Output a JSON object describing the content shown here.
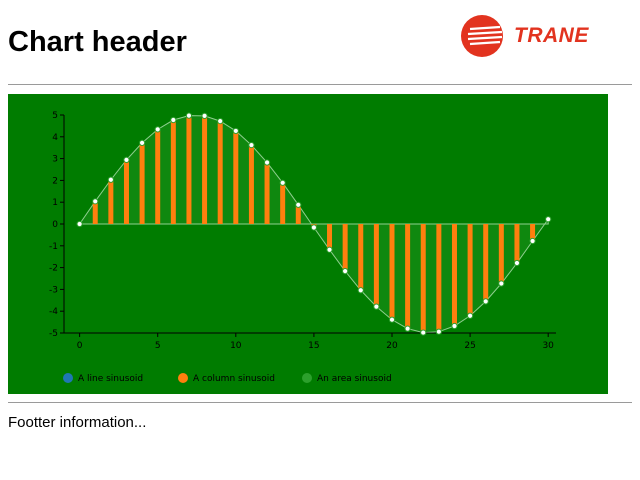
{
  "header": {
    "title": "Chart header",
    "logo_text": "TRANE"
  },
  "footer": {
    "text": "Footter information..."
  },
  "colors": {
    "background": "#007c00",
    "line": "#1f77b4",
    "column": "#ff7f0e",
    "area": "#2ca02c",
    "brand": "#e2331f"
  },
  "chart_data": {
    "type": "bar",
    "title": "",
    "xlabel": "",
    "ylabel": "",
    "xlim": [
      -1,
      30.5
    ],
    "ylim": [
      -5,
      5
    ],
    "x_ticks": [
      0,
      5,
      10,
      15,
      20,
      25,
      30
    ],
    "y_ticks": [
      -5,
      -4,
      -3,
      -2,
      -1,
      0,
      1,
      2,
      3,
      4,
      5
    ],
    "grid": false,
    "legend_position": "bottom-left",
    "x": [
      0,
      1,
      2,
      3,
      4,
      5,
      6,
      7,
      8,
      9,
      10,
      11,
      12,
      13,
      14,
      15,
      16,
      17,
      18,
      19,
      20,
      21,
      22,
      23,
      24,
      25,
      26,
      27,
      28,
      29,
      30
    ],
    "series": [
      {
        "name": "A line sinusoid",
        "kind": "line",
        "values": [
          0,
          1.04,
          2.03,
          2.94,
          3.72,
          4.34,
          4.77,
          4.97,
          4.96,
          4.72,
          4.27,
          3.62,
          2.82,
          1.89,
          0.88,
          -0.16,
          -1.18,
          -2.16,
          -3.04,
          -3.79,
          -4.39,
          -4.8,
          -4.98,
          -4.94,
          -4.68,
          -4.21,
          -3.55,
          -2.73,
          -1.79,
          -0.78,
          0.22
        ]
      },
      {
        "name": "A column sinusoid",
        "kind": "column",
        "values": [
          0,
          1.04,
          2.03,
          2.94,
          3.72,
          4.34,
          4.77,
          4.97,
          4.96,
          4.72,
          4.27,
          3.62,
          2.82,
          1.89,
          0.88,
          -0.16,
          -1.18,
          -2.16,
          -3.04,
          -3.79,
          -4.39,
          -4.8,
          -4.98,
          -4.94,
          -4.68,
          -4.21,
          -3.55,
          -2.73,
          -1.79,
          -0.78,
          null
        ]
      },
      {
        "name": "An area sinusoid",
        "kind": "area",
        "values": [
          0,
          1.04,
          2.03,
          2.94,
          3.72,
          4.34,
          4.77,
          4.97,
          4.96,
          4.72,
          4.27,
          3.62,
          2.82,
          1.89,
          0.88,
          -0.16,
          -1.18,
          -2.16,
          -3.04,
          -3.79,
          -4.39,
          -4.8,
          -4.98,
          -4.94,
          -4.68,
          -4.21,
          -3.55,
          -2.73,
          -1.79,
          -0.78,
          0.22
        ]
      }
    ]
  }
}
